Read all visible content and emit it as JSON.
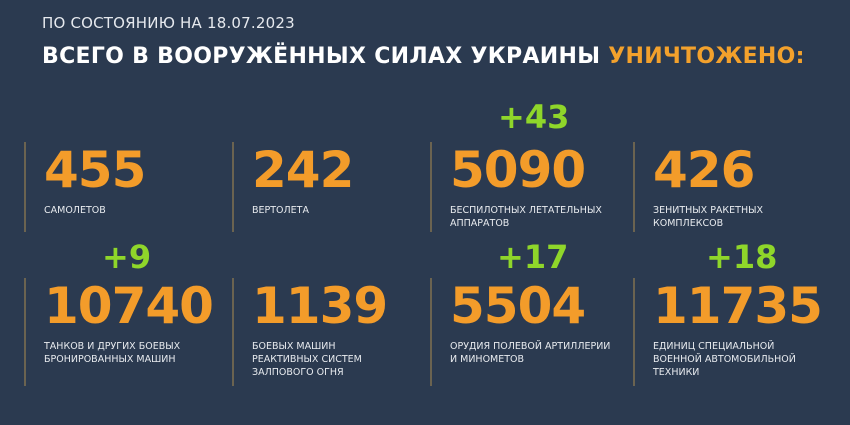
{
  "date_line": "ПО СОСТОЯНИЮ НА 18.07.2023",
  "headline": "ВСЕГО В ВООРУЖЁННЫХ СИЛАХ УКРАИНЫ",
  "headline_accent": "УНИЧТОЖЕНО:",
  "colors": {
    "background": "#2b3a50",
    "number": "#f39c2a",
    "delta": "#8fd62a"
  },
  "stats": [
    {
      "value": "455",
      "label": "САМОЛЕТОВ",
      "delta": ""
    },
    {
      "value": "242",
      "label": "ВЕРТОЛЕТА",
      "delta": ""
    },
    {
      "value": "5090",
      "label": "БЕСПИЛОТНЫХ ЛЕТАТЕЛЬНЫХ АППАРАТОВ",
      "delta": "+43"
    },
    {
      "value": "426",
      "label": "ЗЕНИТНЫХ РАКЕТНЫХ КОМПЛЕКСОВ",
      "delta": ""
    },
    {
      "value": "10740",
      "label": "ТАНКОВ И ДРУГИХ БОЕВЫХ БРОНИРОВАННЫХ МАШИН",
      "delta": "+9"
    },
    {
      "value": "1139",
      "label": "БОЕВЫХ МАШИН РЕАКТИВНЫХ СИСТЕМ ЗАЛПОВОГО ОГНЯ",
      "delta": ""
    },
    {
      "value": "5504",
      "label": "ОРУДИЯ ПОЛЕВОЙ АРТИЛЛЕРИИ И МИНОМЕТОВ",
      "delta": "+17"
    },
    {
      "value": "11735",
      "label": "ЕДИНИЦ СПЕЦИАЛЬНОЙ ВОЕННОЙ АВТОМОБИЛЬНОЙ ТЕХНИКИ",
      "delta": "+18"
    }
  ]
}
